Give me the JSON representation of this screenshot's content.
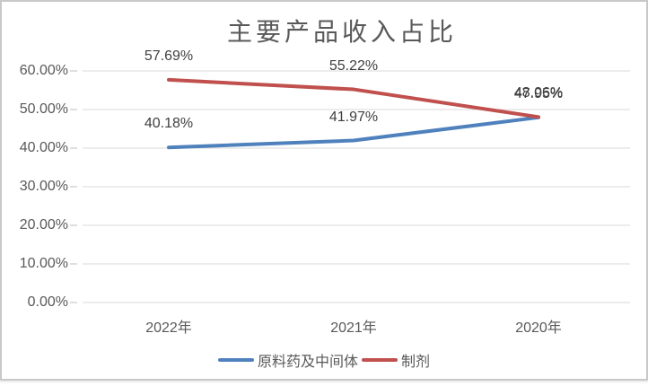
{
  "frame": {
    "background_color": "#ffffff",
    "border_color": "#c9c9c9"
  },
  "colors": {
    "grid": "#d9d9d9",
    "tick": "#bfbfbf",
    "axis_text": "#595959",
    "data_label_text": "#3f3f3f",
    "title_text": "#595959",
    "series_blue": "#4f81bd",
    "series_red": "#c0504d"
  },
  "chart_data": {
    "type": "line",
    "title": "主要产品收入占比",
    "categories": [
      "2022年",
      "2021年",
      "2020年"
    ],
    "series": [
      {
        "name": "原料药及中间体",
        "color": "#4f81bd",
        "values": [
          40.18,
          41.97,
          47.95
        ],
        "labels": [
          "40.18%",
          "41.97%",
          "47.95%"
        ]
      },
      {
        "name": "制剂",
        "color": "#c0504d",
        "values": [
          57.69,
          55.22,
          48.06
        ],
        "labels": [
          "57.69%",
          "55.22%",
          "48.06%"
        ]
      }
    ],
    "y_axis": {
      "min": 0,
      "max": 60,
      "step": 10,
      "tick_labels": [
        "60.00%",
        "50.00%",
        "40.00%",
        "30.00%",
        "20.00%",
        "10.00%",
        "0.00%"
      ]
    },
    "x_axis": {
      "label": ""
    },
    "grid": true,
    "data_labels_position": "above",
    "note_overlapping_labels": "2020年 labels 47.95% and 48.06% overlap visually",
    "legend_position": "bottom"
  }
}
